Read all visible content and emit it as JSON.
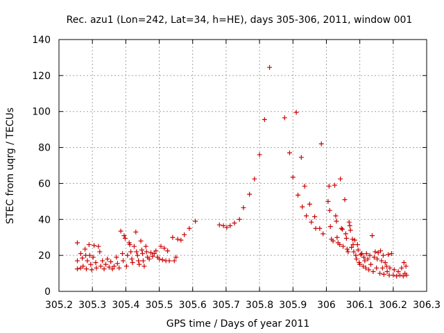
{
  "chart_data": {
    "type": "scatter",
    "title": "Rec. azu1 (Lon=242, Lat=34, h=HE), days 305-306, 2011, window 001",
    "xlabel": "GPS time / Days of year 2011",
    "ylabel": "STEC from uqrg / TECUs",
    "xlim": [
      305.2,
      306.3
    ],
    "ylim": [
      0,
      140
    ],
    "x_ticks": [
      305.2,
      305.3,
      305.4,
      305.5,
      305.6,
      305.7,
      305.8,
      305.9,
      306,
      306.1,
      306.2,
      306.3
    ],
    "x_tick_labels": [
      "305.2",
      "305.3",
      "305.4",
      "305.5",
      "305.6",
      "305.7",
      "305.8",
      "305.9",
      "306",
      "306.1",
      "306.2",
      "306.3"
    ],
    "y_ticks": [
      0,
      20,
      40,
      60,
      80,
      100,
      120,
      140
    ],
    "y_tick_labels": [
      "0",
      "20",
      "40",
      "60",
      "80",
      "100",
      "120",
      "140"
    ],
    "grid": true,
    "legend": "none",
    "marker": "plus",
    "color": "#cc0000",
    "points": [
      [
        305.255,
        27
      ],
      [
        305.255,
        17
      ],
      [
        305.255,
        12.5
      ],
      [
        305.265,
        21
      ],
      [
        305.265,
        13
      ],
      [
        305.27,
        18.5
      ],
      [
        305.272,
        14
      ],
      [
        305.278,
        23.5
      ],
      [
        305.28,
        20
      ],
      [
        305.282,
        12.5
      ],
      [
        305.285,
        17
      ],
      [
        305.29,
        26
      ],
      [
        305.292,
        20
      ],
      [
        305.295,
        15
      ],
      [
        305.298,
        12
      ],
      [
        305.302,
        19
      ],
      [
        305.305,
        25.5
      ],
      [
        305.31,
        16
      ],
      [
        305.312,
        13
      ],
      [
        305.318,
        25
      ],
      [
        305.322,
        22
      ],
      [
        305.325,
        14
      ],
      [
        305.33,
        17
      ],
      [
        305.335,
        12.5
      ],
      [
        305.34,
        15
      ],
      [
        305.345,
        18
      ],
      [
        305.35,
        13.5
      ],
      [
        305.355,
        16.5
      ],
      [
        305.36,
        12.5
      ],
      [
        305.365,
        14
      ],
      [
        305.372,
        19
      ],
      [
        305.375,
        15.5
      ],
      [
        305.38,
        13
      ],
      [
        305.385,
        33.5
      ],
      [
        305.39,
        21
      ],
      [
        305.392,
        17
      ],
      [
        305.395,
        31
      ],
      [
        305.398,
        29.5
      ],
      [
        305.402,
        14
      ],
      [
        305.405,
        20
      ],
      [
        305.41,
        27
      ],
      [
        305.412,
        26
      ],
      [
        305.415,
        22
      ],
      [
        305.418,
        18
      ],
      [
        305.42,
        16
      ],
      [
        305.425,
        25
      ],
      [
        305.43,
        33
      ],
      [
        305.432,
        22
      ],
      [
        305.435,
        20
      ],
      [
        305.438,
        17
      ],
      [
        305.44,
        15
      ],
      [
        305.445,
        28
      ],
      [
        305.448,
        23
      ],
      [
        305.45,
        21
      ],
      [
        305.452,
        17
      ],
      [
        305.455,
        14
      ],
      [
        305.46,
        25
      ],
      [
        305.462,
        22
      ],
      [
        305.465,
        19
      ],
      [
        305.47,
        18
      ],
      [
        305.475,
        21.5
      ],
      [
        305.48,
        19.5
      ],
      [
        305.485,
        21
      ],
      [
        305.49,
        22.5
      ],
      [
        305.495,
        19
      ],
      [
        305.5,
        18
      ],
      [
        305.505,
        25
      ],
      [
        305.51,
        17.5
      ],
      [
        305.515,
        24
      ],
      [
        305.52,
        17
      ],
      [
        305.525,
        22.5
      ],
      [
        305.53,
        17
      ],
      [
        305.54,
        30
      ],
      [
        305.545,
        17
      ],
      [
        305.55,
        19
      ],
      [
        305.555,
        29
      ],
      [
        305.565,
        28.5
      ],
      [
        305.575,
        31.5
      ],
      [
        305.59,
        35
      ],
      [
        305.608,
        39
      ],
      [
        305.68,
        37
      ],
      [
        305.692,
        36.5
      ],
      [
        305.702,
        35.5
      ],
      [
        305.712,
        36.5
      ],
      [
        305.725,
        38
      ],
      [
        305.74,
        40
      ],
      [
        305.752,
        46.5
      ],
      [
        305.77,
        54
      ],
      [
        305.785,
        62.5
      ],
      [
        305.8,
        76
      ],
      [
        305.815,
        95.5
      ],
      [
        305.83,
        124.5
      ],
      [
        305.875,
        96.5
      ],
      [
        305.89,
        77
      ],
      [
        305.9,
        63.5
      ],
      [
        305.91,
        99.5
      ],
      [
        305.915,
        53.5
      ],
      [
        305.925,
        74.5
      ],
      [
        305.928,
        47
      ],
      [
        305.935,
        58.5
      ],
      [
        305.94,
        42
      ],
      [
        305.95,
        48.5
      ],
      [
        305.955,
        38.5
      ],
      [
        305.965,
        41.5
      ],
      [
        305.968,
        35
      ],
      [
        305.98,
        35
      ],
      [
        305.985,
        82
      ],
      [
        305.99,
        32
      ],
      [
        306.005,
        50
      ],
      [
        306.008,
        58.5
      ],
      [
        306.01,
        45
      ],
      [
        306.012,
        36
      ],
      [
        306.015,
        29
      ],
      [
        306.02,
        28
      ],
      [
        306.025,
        59
      ],
      [
        306.028,
        42
      ],
      [
        306.03,
        39
      ],
      [
        306.032,
        30
      ],
      [
        306.035,
        27
      ],
      [
        306.04,
        26
      ],
      [
        306.042,
        62.5
      ],
      [
        306.045,
        35
      ],
      [
        306.048,
        34.5
      ],
      [
        306.05,
        25
      ],
      [
        306.055,
        51
      ],
      [
        306.058,
        32
      ],
      [
        306.06,
        29.5
      ],
      [
        306.062,
        23.5
      ],
      [
        306.065,
        22
      ],
      [
        306.068,
        38.5
      ],
      [
        306.07,
        36.5
      ],
      [
        306.072,
        34
      ],
      [
        306.075,
        24.5
      ],
      [
        306.078,
        29
      ],
      [
        306.08,
        26
      ],
      [
        306.082,
        22
      ],
      [
        306.085,
        28.5
      ],
      [
        306.088,
        20
      ],
      [
        306.09,
        18
      ],
      [
        306.093,
        26
      ],
      [
        306.095,
        23
      ],
      [
        306.098,
        16
      ],
      [
        306.1,
        15
      ],
      [
        306.103,
        20.5
      ],
      [
        306.106,
        21
      ],
      [
        306.11,
        14
      ],
      [
        306.112,
        19
      ],
      [
        306.115,
        17
      ],
      [
        306.118,
        13
      ],
      [
        306.12,
        21
      ],
      [
        306.124,
        18
      ],
      [
        306.127,
        12
      ],
      [
        306.13,
        20
      ],
      [
        306.133,
        15
      ],
      [
        306.137,
        31
      ],
      [
        306.14,
        11
      ],
      [
        306.143,
        19
      ],
      [
        306.146,
        22
      ],
      [
        306.15,
        13
      ],
      [
        306.152,
        18
      ],
      [
        306.155,
        21.5
      ],
      [
        306.16,
        10
      ],
      [
        306.162,
        22.5
      ],
      [
        306.165,
        17
      ],
      [
        306.168,
        13
      ],
      [
        306.17,
        20
      ],
      [
        306.172,
        9.5
      ],
      [
        306.176,
        16
      ],
      [
        306.18,
        14
      ],
      [
        306.182,
        11
      ],
      [
        306.185,
        20.5
      ],
      [
        306.188,
        9
      ],
      [
        306.19,
        13
      ],
      [
        306.195,
        21
      ],
      [
        306.2,
        9
      ],
      [
        306.203,
        12
      ],
      [
        306.21,
        8.5
      ],
      [
        306.215,
        11
      ],
      [
        306.22,
        9
      ],
      [
        306.225,
        13
      ],
      [
        306.23,
        8.5
      ],
      [
        306.232,
        16
      ],
      [
        306.235,
        10
      ],
      [
        306.238,
        14
      ],
      [
        306.24,
        9
      ]
    ]
  }
}
